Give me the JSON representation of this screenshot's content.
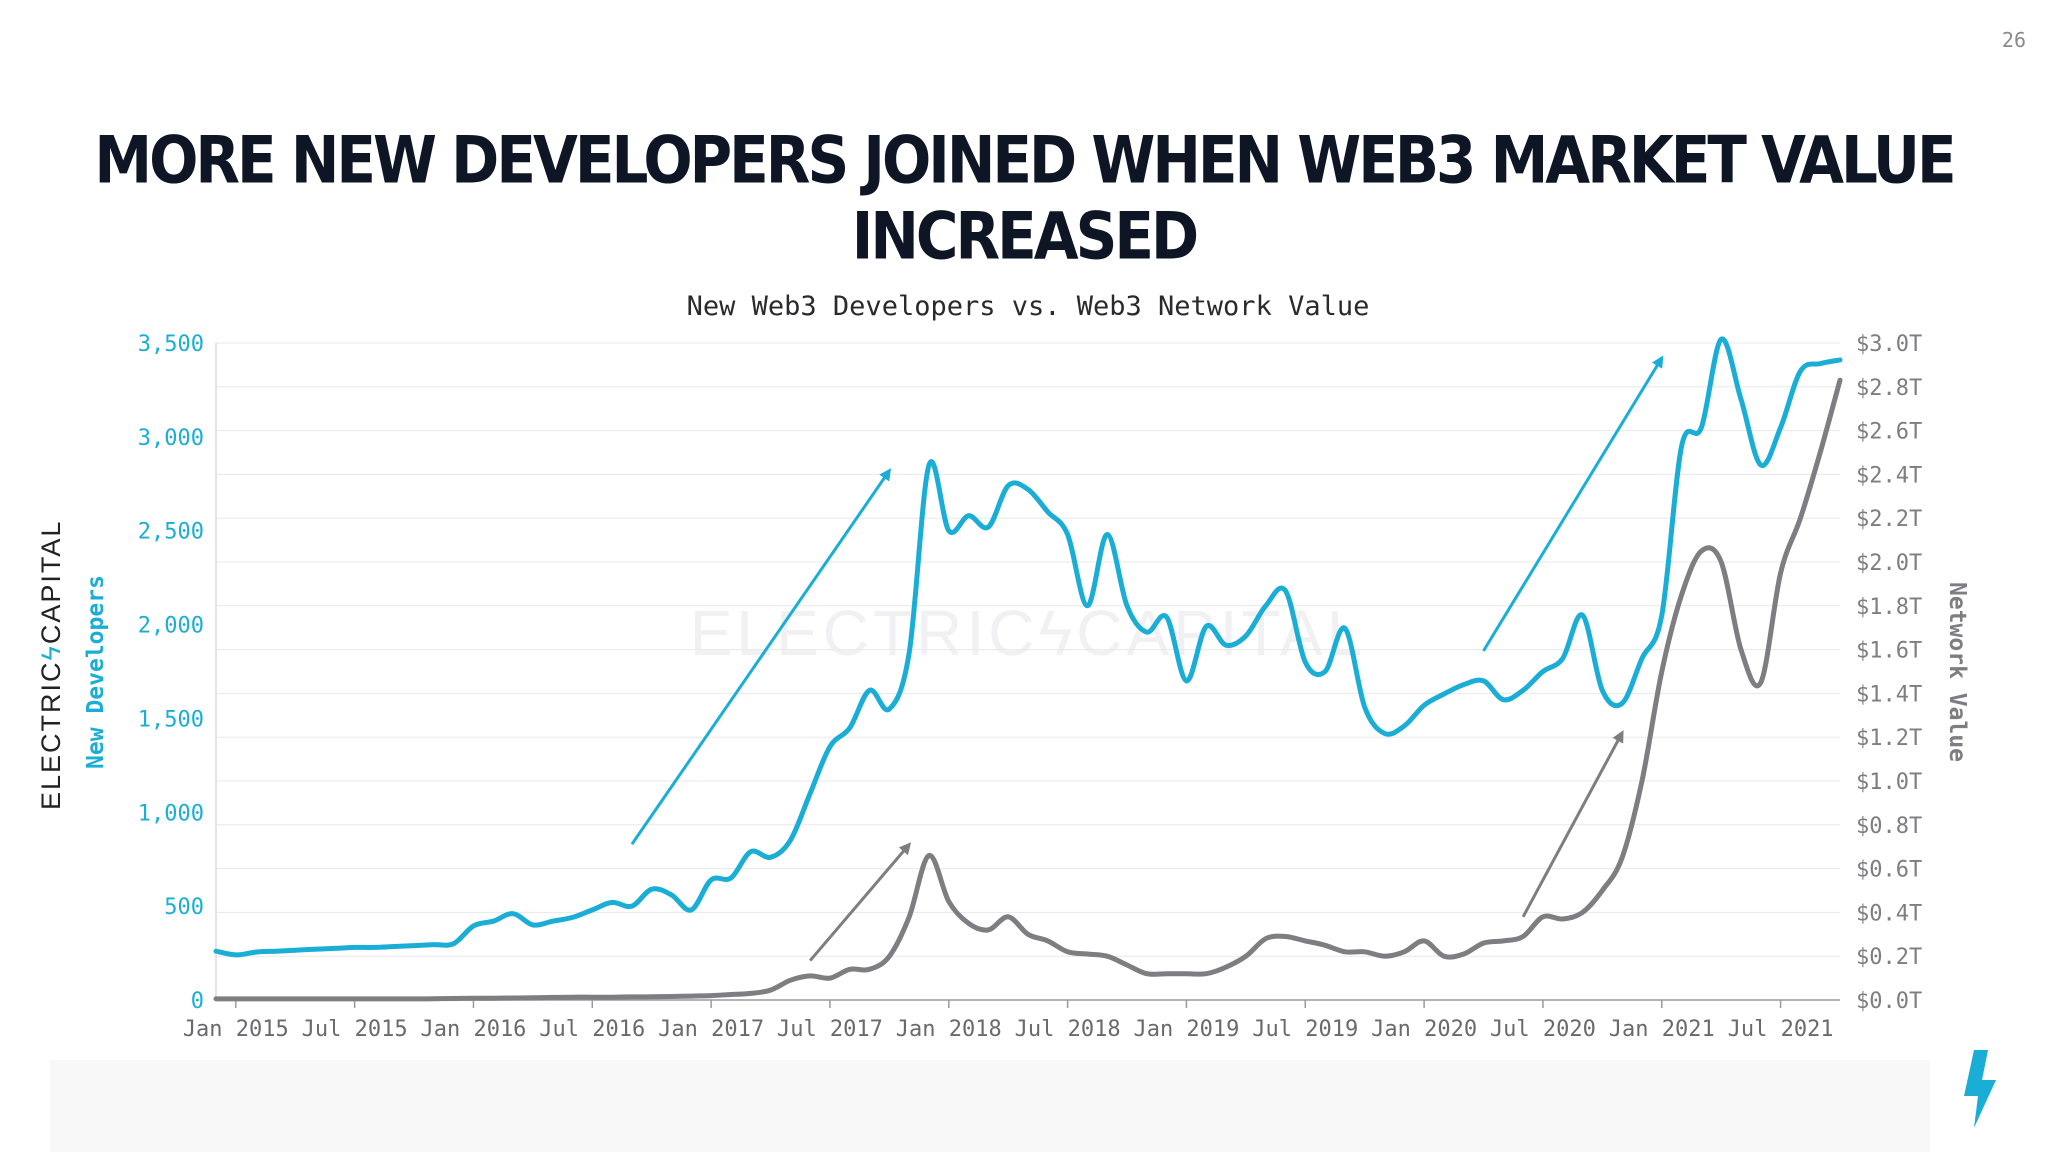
{
  "slide": {
    "number": "26",
    "title": "More New Developers Joined When Web3 Market Value Increased",
    "brand_left": "ELECTRIC",
    "brand_mark": "ϟ",
    "brand_right": "CAPITAL",
    "accent_color": "#1aaed6",
    "secondary_color": "#7d7d82"
  },
  "chart_data": {
    "type": "line",
    "title": "New Web3 Developers vs. Web3 Network Value",
    "watermark": "ELECTRICϟCAPITAL",
    "ylabel_left": "New Developers",
    "ylabel_right": "Network Value",
    "ylim_left": [
      0,
      3500
    ],
    "ylim_right": [
      0,
      3.0
    ],
    "yticks_left": [
      "0",
      "500",
      "1,000",
      "1,500",
      "2,000",
      "2,500",
      "3,000",
      "3,500"
    ],
    "yticks_left_values": [
      0,
      500,
      1000,
      1500,
      2000,
      2500,
      3000,
      3500
    ],
    "yticks_right": [
      "$0.0T",
      "$0.2T",
      "$0.4T",
      "$0.6T",
      "$0.8T",
      "$1.0T",
      "$1.2T",
      "$1.4T",
      "$1.6T",
      "$1.8T",
      "$2.0T",
      "$2.2T",
      "$2.4T",
      "$2.6T",
      "$2.8T",
      "$3.0T"
    ],
    "yticks_right_values": [
      0,
      0.2,
      0.4,
      0.6,
      0.8,
      1.0,
      1.2,
      1.4,
      1.6,
      1.8,
      2.0,
      2.2,
      2.4,
      2.6,
      2.8,
      3.0
    ],
    "xlim": [
      "2014-12",
      "2021-10"
    ],
    "xticks": [
      "Jan 2015",
      "Jul 2015",
      "Jan 2016",
      "Jul 2016",
      "Jan 2017",
      "Jul 2017",
      "Jan 2018",
      "Jul 2018",
      "Jan 2019",
      "Jul 2019",
      "Jan 2020",
      "Jul 2020",
      "Jan 2021",
      "Jul 2021"
    ],
    "xticks_values": [
      "2015-01",
      "2015-07",
      "2016-01",
      "2016-07",
      "2017-01",
      "2017-07",
      "2018-01",
      "2018-07",
      "2019-01",
      "2019-07",
      "2020-01",
      "2020-07",
      "2021-01",
      "2021-07"
    ],
    "grid": true,
    "series": [
      {
        "name": "New Developers",
        "axis": "left",
        "color": "#1aaed6",
        "x": [
          "2014-12",
          "2015-01",
          "2015-02",
          "2015-03",
          "2015-04",
          "2015-05",
          "2015-06",
          "2015-07",
          "2015-08",
          "2015-09",
          "2015-10",
          "2015-11",
          "2015-12",
          "2016-01",
          "2016-02",
          "2016-03",
          "2016-04",
          "2016-05",
          "2016-06",
          "2016-07",
          "2016-08",
          "2016-09",
          "2016-10",
          "2016-11",
          "2016-12",
          "2017-01",
          "2017-02",
          "2017-03",
          "2017-04",
          "2017-05",
          "2017-06",
          "2017-07",
          "2017-08",
          "2017-09",
          "2017-10",
          "2017-11",
          "2017-12",
          "2018-01",
          "2018-02",
          "2018-03",
          "2018-04",
          "2018-05",
          "2018-06",
          "2018-07",
          "2018-08",
          "2018-09",
          "2018-10",
          "2018-11",
          "2018-12",
          "2019-01",
          "2019-02",
          "2019-03",
          "2019-04",
          "2019-05",
          "2019-06",
          "2019-07",
          "2019-08",
          "2019-09",
          "2019-10",
          "2019-11",
          "2019-12",
          "2020-01",
          "2020-02",
          "2020-03",
          "2020-04",
          "2020-05",
          "2020-06",
          "2020-07",
          "2020-08",
          "2020-09",
          "2020-10",
          "2020-11",
          "2020-12",
          "2021-01",
          "2021-02",
          "2021-03",
          "2021-04",
          "2021-05",
          "2021-06",
          "2021-07",
          "2021-08",
          "2021-09",
          "2021-10"
        ],
        "values": [
          260,
          240,
          255,
          260,
          265,
          270,
          275,
          280,
          280,
          285,
          290,
          295,
          300,
          395,
          420,
          460,
          400,
          420,
          440,
          480,
          520,
          500,
          590,
          560,
          480,
          640,
          650,
          790,
          760,
          850,
          1100,
          1350,
          1450,
          1650,
          1550,
          1850,
          2850,
          2500,
          2580,
          2520,
          2740,
          2720,
          2600,
          2480,
          2100,
          2480,
          2100,
          1960,
          2040,
          1700,
          1990,
          1890,
          1940,
          2100,
          2180,
          1800,
          1750,
          1980,
          1560,
          1420,
          1460,
          1570,
          1630,
          1680,
          1700,
          1600,
          1650,
          1750,
          1820,
          2050,
          1650,
          1580,
          1820,
          2050,
          2950,
          3050,
          3520,
          3200,
          2850,
          3050,
          3350,
          3390,
          3410
        ]
      },
      {
        "name": "Network Value",
        "axis": "right",
        "color": "#7d7d82",
        "x": [
          "2014-12",
          "2015-01",
          "2015-02",
          "2015-03",
          "2015-04",
          "2015-05",
          "2015-06",
          "2015-07",
          "2015-08",
          "2015-09",
          "2015-10",
          "2015-11",
          "2015-12",
          "2016-01",
          "2016-02",
          "2016-03",
          "2016-04",
          "2016-05",
          "2016-06",
          "2016-07",
          "2016-08",
          "2016-09",
          "2016-10",
          "2016-11",
          "2016-12",
          "2017-01",
          "2017-02",
          "2017-03",
          "2017-04",
          "2017-05",
          "2017-06",
          "2017-07",
          "2017-08",
          "2017-09",
          "2017-10",
          "2017-11",
          "2017-12",
          "2018-01",
          "2018-02",
          "2018-03",
          "2018-04",
          "2018-05",
          "2018-06",
          "2018-07",
          "2018-08",
          "2018-09",
          "2018-10",
          "2018-11",
          "2018-12",
          "2019-01",
          "2019-02",
          "2019-03",
          "2019-04",
          "2019-05",
          "2019-06",
          "2019-07",
          "2019-08",
          "2019-09",
          "2019-10",
          "2019-11",
          "2019-12",
          "2020-01",
          "2020-02",
          "2020-03",
          "2020-04",
          "2020-05",
          "2020-06",
          "2020-07",
          "2020-08",
          "2020-09",
          "2020-10",
          "2020-11",
          "2020-12",
          "2021-01",
          "2021-02",
          "2021-03",
          "2021-04",
          "2021-05",
          "2021-06",
          "2021-07",
          "2021-08",
          "2021-09",
          "2021-10"
        ],
        "values": [
          0.005,
          0.005,
          0.005,
          0.005,
          0.005,
          0.005,
          0.005,
          0.005,
          0.005,
          0.005,
          0.005,
          0.006,
          0.007,
          0.008,
          0.008,
          0.009,
          0.01,
          0.012,
          0.013,
          0.013,
          0.013,
          0.014,
          0.015,
          0.016,
          0.018,
          0.02,
          0.025,
          0.03,
          0.045,
          0.09,
          0.11,
          0.1,
          0.14,
          0.14,
          0.2,
          0.38,
          0.66,
          0.45,
          0.35,
          0.32,
          0.38,
          0.3,
          0.27,
          0.22,
          0.21,
          0.2,
          0.16,
          0.12,
          0.12,
          0.12,
          0.12,
          0.15,
          0.2,
          0.28,
          0.29,
          0.27,
          0.25,
          0.22,
          0.22,
          0.2,
          0.22,
          0.27,
          0.2,
          0.21,
          0.26,
          0.27,
          0.29,
          0.38,
          0.37,
          0.4,
          0.5,
          0.65,
          1.0,
          1.5,
          1.85,
          2.05,
          2.0,
          1.6,
          1.45,
          1.95,
          2.2,
          2.5,
          2.83
        ]
      }
    ],
    "annotations": [
      {
        "type": "arrow",
        "color": "#1aaed6",
        "from": [
          "2016-09",
          830
        ],
        "to": [
          "2017-10",
          2820
        ]
      },
      {
        "type": "arrow",
        "color": "#7d7d82",
        "from": [
          "2017-06",
          0.18
        ],
        "to": [
          "2017-11",
          0.71
        ]
      },
      {
        "type": "arrow",
        "color": "#1aaed6",
        "from": [
          "2020-04",
          1860
        ],
        "to": [
          "2021-01",
          3420
        ]
      },
      {
        "type": "arrow",
        "color": "#7d7d82",
        "from": [
          "2020-06",
          0.38
        ],
        "to": [
          "2020-11",
          1.22
        ]
      }
    ]
  }
}
